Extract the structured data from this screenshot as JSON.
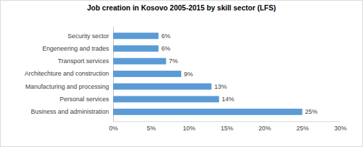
{
  "chart_data": {
    "type": "bar",
    "orientation": "horizontal",
    "title": "Job creation in Kosovo 2005-2015 by skill sector (LFS)",
    "categories": [
      "Security sector",
      "Engeneering and trades",
      "Transport services",
      "Architechture and construction",
      "Manufacturing and processing",
      "Personal services",
      "Business and administration"
    ],
    "values": [
      6,
      6,
      7,
      9,
      13,
      14,
      25
    ],
    "value_labels": [
      "6%",
      "6%",
      "7%",
      "9%",
      "13%",
      "14%",
      "25%"
    ],
    "data_labels": true,
    "color": "#5b9bd5",
    "xlim": [
      0,
      30
    ],
    "xticks": [
      {
        "value": 0,
        "label": "0%"
      },
      {
        "value": 5,
        "label": "5%"
      },
      {
        "value": 10,
        "label": "10%"
      },
      {
        "value": 15,
        "label": "15%"
      },
      {
        "value": 20,
        "label": "20%"
      },
      {
        "value": 25,
        "label": "25%"
      },
      {
        "value": 30,
        "label": "30%"
      }
    ],
    "grid": false
  }
}
